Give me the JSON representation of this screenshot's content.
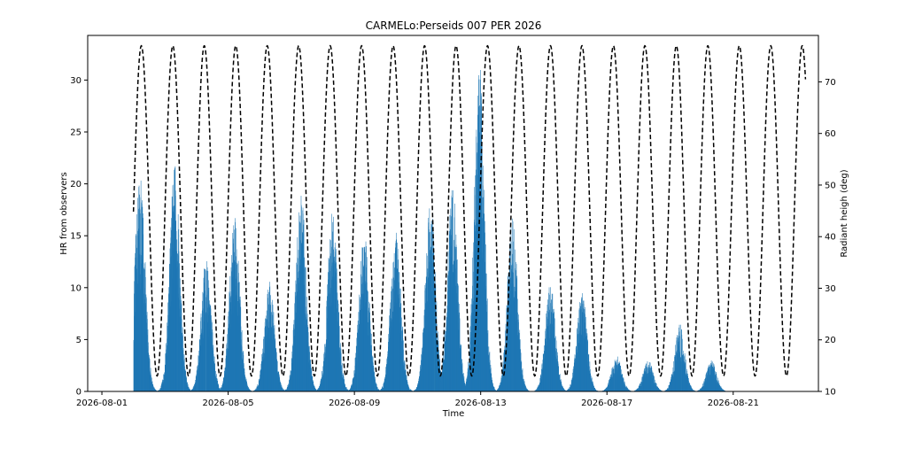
{
  "chart_data": {
    "type": "bar",
    "title": "CARMELo:Perseids 007 PER  2026",
    "xlabel": "Time",
    "ylabel": "HR from observers",
    "y2label": "Radiant heigh (deg)",
    "x_tick_labels": [
      "2026-08-01",
      "2026-08-05",
      "2026-08-09",
      "2026-08-13",
      "2026-08-17",
      "2026-08-21"
    ],
    "x_tick_days": [
      1,
      5,
      9,
      13,
      17,
      21
    ],
    "xlim_days": [
      0.55,
      23.7
    ],
    "ylim": [
      0,
      34.3
    ],
    "y_ticks": [
      0,
      5,
      10,
      15,
      20,
      25,
      30
    ],
    "y2lim": [
      10,
      79
    ],
    "y2_ticks": [
      10,
      20,
      30,
      40,
      50,
      60,
      70
    ],
    "grid": false,
    "bar_color": "#1f77b4",
    "line_color": "#000000",
    "series": [
      {
        "kind": "bar",
        "axis": "left",
        "daily_peaks": [
          {
            "day": 2.2,
            "peak": 21.5
          },
          {
            "day": 3.3,
            "peak": 22.0
          },
          {
            "day": 4.3,
            "peak": 13.0
          },
          {
            "day": 5.2,
            "peak": 17.0
          },
          {
            "day": 6.3,
            "peak": 11.0
          },
          {
            "day": 7.3,
            "peak": 19.5
          },
          {
            "day": 8.3,
            "peak": 17.5
          },
          {
            "day": 9.3,
            "peak": 15.5
          },
          {
            "day": 10.3,
            "peak": 16.0
          },
          {
            "day": 11.4,
            "peak": 18.5
          },
          {
            "day": 12.1,
            "peak": 20.0
          },
          {
            "day": 12.95,
            "peak": 32.0
          },
          {
            "day": 14.0,
            "peak": 17.0
          },
          {
            "day": 15.2,
            "peak": 10.5
          },
          {
            "day": 16.2,
            "peak": 10.0
          },
          {
            "day": 17.3,
            "peak": 3.5
          },
          {
            "day": 18.3,
            "peak": 3.0
          },
          {
            "day": 19.3,
            "peak": 6.5
          },
          {
            "day": 20.3,
            "peak": 3.0
          }
        ],
        "coverage_days": [
          2.0,
          21.4
        ]
      },
      {
        "kind": "line",
        "axis": "right",
        "style": "dashed",
        "min_deg": 13,
        "max_deg": 77,
        "first_peak_day": 2.25,
        "period_days": 0.997,
        "x_start_day": 2.0,
        "x_end_day": 23.3
      }
    ]
  }
}
